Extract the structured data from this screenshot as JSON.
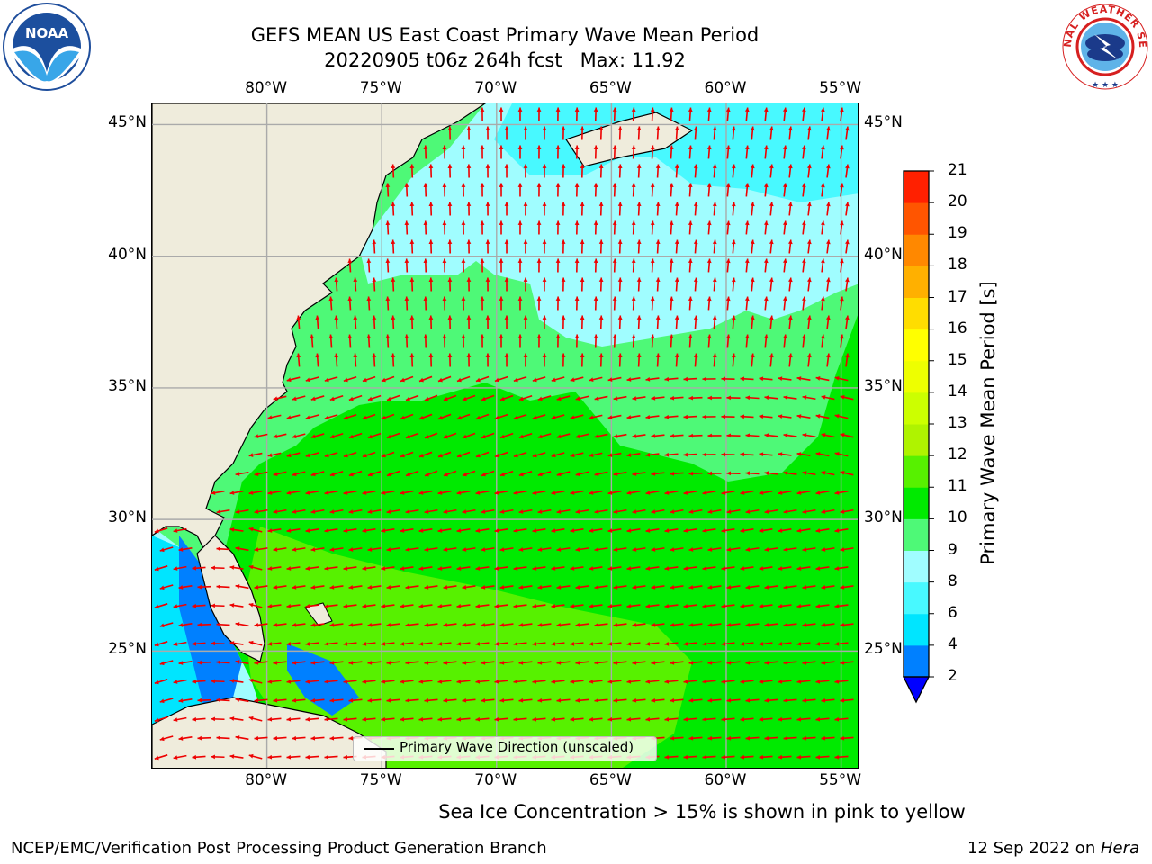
{
  "title": {
    "line1": "GEFS MEAN US East Coast Primary Wave Mean Period",
    "line2": "20220905 t06z 264h fcst   Max: 11.92"
  },
  "map": {
    "lon_labels": [
      "80°W",
      "75°W",
      "70°W",
      "65°W",
      "60°W",
      "55°W"
    ],
    "lat_labels": [
      "45°N",
      "40°N",
      "35°N",
      "30°N",
      "25°N"
    ],
    "lon_range": [
      -85,
      -54.2
    ],
    "lat_range": [
      20.5,
      45.8
    ],
    "colors": {
      "land": "#efecdc",
      "ocean_default": "#00ea00",
      "arrow": "#ee0000",
      "grid": "#aaaaaa"
    },
    "legend_label": "Primary Wave Direction (unscaled)"
  },
  "colorbar": {
    "label": "Primary Wave Mean Period [s]",
    "tick_labels": [
      "21",
      "20",
      "19",
      "18",
      "17",
      "16",
      "15",
      "14",
      "13",
      "12",
      "11",
      "10",
      "9",
      "8",
      "6",
      "4",
      "2"
    ],
    "colors": [
      "#0000ff",
      "#0080ff",
      "#00e5ff",
      "#48f9ff",
      "#a0fdff",
      "#4ef977",
      "#00ea00",
      "#57f100",
      "#aff300",
      "#ccff00",
      "#eeff00",
      "#ffff00",
      "#ffdd00",
      "#ffb000",
      "#ff8800",
      "#ff5500",
      "#ff2000",
      "#ff0000"
    ],
    "extend_color": "#0000ff"
  },
  "note": "Sea Ice Concentration > 15% is shown in pink to yellow",
  "footer": {
    "left": "NCEP/EMC/Verification Post Processing Product Generation Branch",
    "right_date": "12 Sep 2022 on ",
    "right_machine": "Hera"
  },
  "logos": {
    "noaa": "NOAA",
    "nws_text": "NATIONAL WEATHER SERVICE"
  }
}
